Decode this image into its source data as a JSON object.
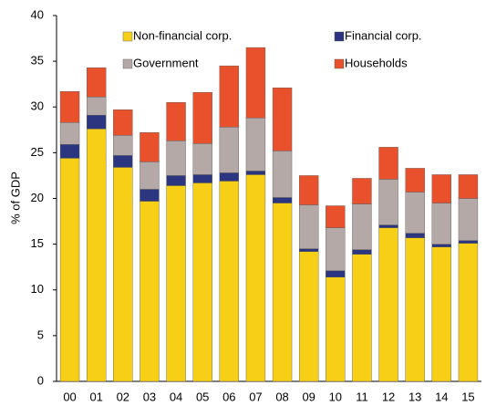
{
  "chart_data": {
    "type": "stacked_bar",
    "y_label": "% of GDP",
    "categories": [
      "00",
      "01",
      "02",
      "03",
      "04",
      "05",
      "06",
      "07",
      "08",
      "09",
      "10",
      "11",
      "12",
      "13",
      "14",
      "15"
    ],
    "series": [
      {
        "name": "Non-financial corp.",
        "color": "#f7cf16",
        "values": [
          24.4,
          27.6,
          23.4,
          19.7,
          21.4,
          21.7,
          21.9,
          22.6,
          19.5,
          14.2,
          11.4,
          13.9,
          16.8,
          15.7,
          14.7,
          15.1
        ]
      },
      {
        "name": "Financial corp.",
        "color": "#2b3580",
        "values": [
          1.5,
          1.5,
          1.3,
          1.3,
          1.1,
          0.9,
          0.9,
          0.4,
          0.6,
          0.3,
          0.7,
          0.5,
          0.3,
          0.5,
          0.3,
          0.3
        ]
      },
      {
        "name": "Government",
        "color": "#b4a9a6",
        "values": [
          2.4,
          2.0,
          2.2,
          3.0,
          3.8,
          3.4,
          5.0,
          5.8,
          5.1,
          4.8,
          4.7,
          5.0,
          5.0,
          4.5,
          4.5,
          4.6
        ]
      },
      {
        "name": "Households",
        "color": "#e8512b",
        "values": [
          3.4,
          3.2,
          2.8,
          3.2,
          4.2,
          5.6,
          6.7,
          7.7,
          6.9,
          3.2,
          2.4,
          2.8,
          3.5,
          2.6,
          3.1,
          2.6
        ]
      }
    ],
    "ylim": [
      0,
      40
    ],
    "yticks": [
      0,
      5,
      10,
      15,
      20,
      25,
      30,
      35,
      40
    ],
    "grid": false
  }
}
